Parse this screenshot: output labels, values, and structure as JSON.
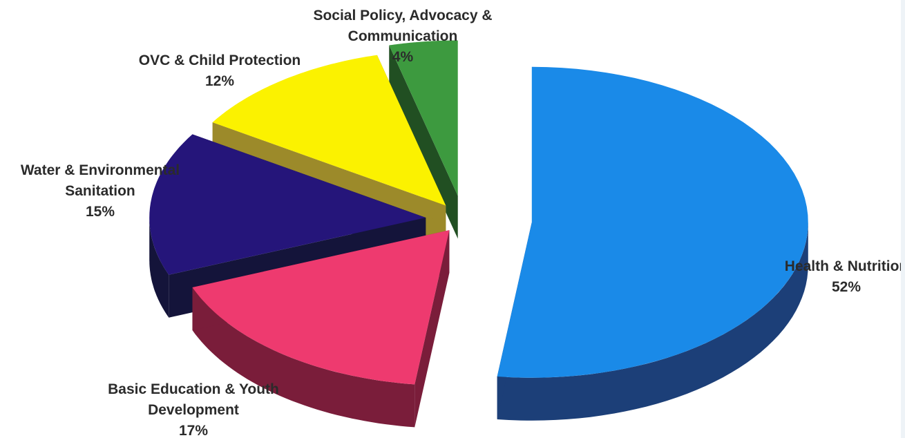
{
  "chart_data": {
    "type": "pie",
    "style": "3d-exploded",
    "title": "",
    "slices": [
      {
        "label_lines": [
          "Health & Nutrition"
        ],
        "pct_text": "52%",
        "value": 52,
        "color": "#1a8ae8",
        "side_color": "#1c3f78"
      },
      {
        "label_lines": [
          "Basic Education & Youth",
          "Development"
        ],
        "pct_text": "17%",
        "value": 17,
        "color": "#ee3a6f",
        "side_color": "#7a1d3a"
      },
      {
        "label_lines": [
          "Water & Environmental",
          "Sanitation"
        ],
        "pct_text": "15%",
        "value": 15,
        "color": "#25157a",
        "side_color": "#14143a"
      },
      {
        "label_lines": [
          "OVC & Child Protection"
        ],
        "pct_text": "12%",
        "value": 12,
        "color": "#fbf200",
        "side_color": "#9c8a2a"
      },
      {
        "label_lines": [
          "Social Policy, Advocacy &",
          "Communication"
        ],
        "pct_text": "4%",
        "value": 4,
        "color": "#3d9a3f",
        "side_color": "#214f22"
      }
    ]
  }
}
